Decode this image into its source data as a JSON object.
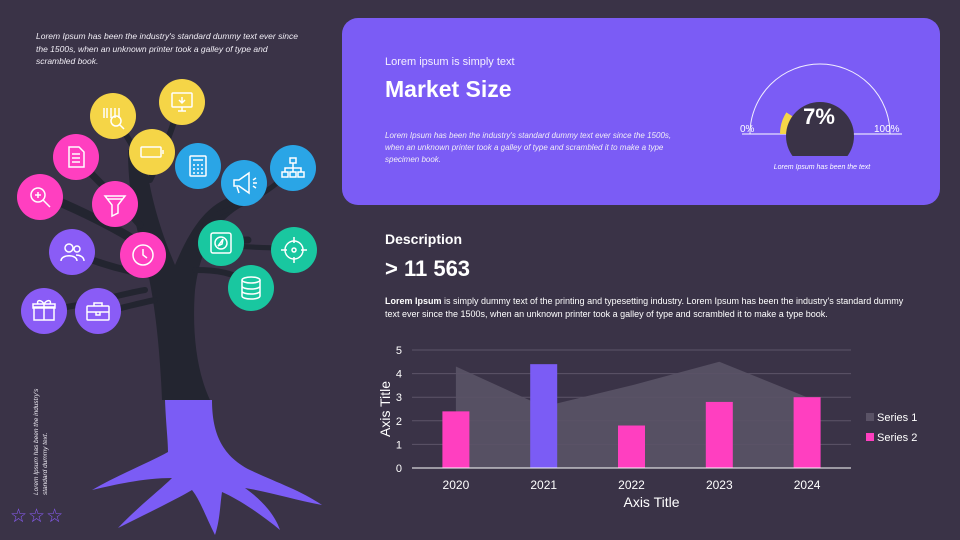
{
  "intro_text": "Lorem Ipsum has been the industry's standard dummy text ever since the 1500s, when an unknown printer took a galley of type and scrambled book.",
  "vertical_note": "Lorem Ipsum has been the industry's standard dummy text.",
  "rating": {
    "stars": "☆☆☆",
    "color": "#8a5cf6"
  },
  "tree_icons": [
    "barcode-icon",
    "monitor-icon",
    "document-icon",
    "battery-icon",
    "calculator-icon",
    "megaphone-icon",
    "org-chart-icon",
    "search-icon",
    "funnel-icon",
    "compass-icon",
    "target-icon",
    "users-icon",
    "clock-icon",
    "database-icon",
    "gift-icon",
    "briefcase-icon"
  ],
  "colors": {
    "background": "#3a3347",
    "card": "#7b5cf5",
    "accent_yellow": "#f5d547",
    "accent_pink": "#ff3fc0",
    "accent_violet": "#8a5cf6",
    "accent_blue": "#2aa5e6",
    "accent_green": "#19c7a0",
    "trunk": "#232530"
  },
  "market": {
    "kicker": "Lorem ipsum is simply text",
    "title": "Market Size",
    "body": "Lorem Ipsum has been the industry's standard dummy text ever since the 1500s, when an unknown printer took a galley of type and scrambled it to make a type specimen book.",
    "gauge": {
      "value": 7,
      "label": "7%",
      "min_label": "0%",
      "max_label": "100%",
      "caption": "Lorem Ipsum has been the text"
    }
  },
  "description": {
    "heading": "Description",
    "number": "> 11 563",
    "body_bold": "Lorem Ipsum",
    "body": " is simply dummy text of the printing and typesetting industry. Lorem Ipsum has been the industry's standard dummy text ever since the 1500s, when an unknown printer took a galley of type and scrambled it to make a type book."
  },
  "chart_data": {
    "type": "bar",
    "categories": [
      "2020",
      "2021",
      "2022",
      "2023",
      "2024"
    ],
    "series": [
      {
        "name": "Series 1",
        "kind": "area",
        "color": "#5a5366",
        "values": [
          4.3,
          2.6,
          3.5,
          4.5,
          3.0
        ]
      },
      {
        "name": "Series 2",
        "kind": "bar",
        "color": "#ff3fc0",
        "values": [
          2.4,
          4.4,
          1.8,
          2.8,
          3.0
        ]
      }
    ],
    "highlight": {
      "category": "2021",
      "color": "#7b5cf5"
    },
    "xlabel": "Axis Title",
    "ylabel": "Axis Title",
    "ylim": [
      0,
      5
    ],
    "yticks": [
      0,
      1,
      2,
      3,
      4,
      5
    ],
    "grid": true,
    "legend": "right"
  }
}
